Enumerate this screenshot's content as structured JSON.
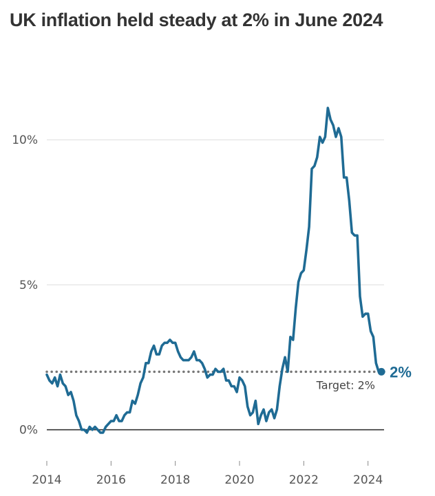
{
  "chart_data": {
    "type": "line",
    "title": "UK inflation held steady at 2% in June 2024",
    "xlabel": "",
    "ylabel": "",
    "x_ticks": [
      "2014",
      "2016",
      "2018",
      "2020",
      "2022",
      "2024"
    ],
    "y_ticks": [
      {
        "value": 0,
        "label": "0%"
      },
      {
        "value": 5,
        "label": "5%"
      },
      {
        "value": 10,
        "label": "10%"
      }
    ],
    "ylim": [
      -0.6,
      11.5
    ],
    "xlim": [
      2014.0,
      2024.5
    ],
    "grid": true,
    "series_color": "#1f6b94",
    "target": {
      "value": 2,
      "label": "Target: 2%"
    },
    "end_label": "2%",
    "series": [
      {
        "start_year": 2014,
        "start_month": 1,
        "values": [
          1.9,
          1.7,
          1.6,
          1.8,
          1.5,
          1.9,
          1.6,
          1.5,
          1.2,
          1.3,
          1.0,
          0.5,
          0.3,
          0.0,
          0.0,
          -0.1,
          0.1,
          0.0,
          0.1,
          0.0,
          -0.1,
          -0.1,
          0.1,
          0.2,
          0.3,
          0.3,
          0.5,
          0.3,
          0.3,
          0.5,
          0.6,
          0.6,
          1.0,
          0.9,
          1.2,
          1.6,
          1.8,
          2.3,
          2.3,
          2.7,
          2.9,
          2.6,
          2.6,
          2.9,
          3.0,
          3.0,
          3.1,
          3.0,
          3.0,
          2.7,
          2.5,
          2.4,
          2.4,
          2.4,
          2.5,
          2.7,
          2.4,
          2.4,
          2.3,
          2.1,
          1.8,
          1.9,
          1.9,
          2.1,
          2.0,
          2.0,
          2.1,
          1.7,
          1.7,
          1.5,
          1.5,
          1.3,
          1.8,
          1.7,
          1.5,
          0.8,
          0.5,
          0.6,
          1.0,
          0.2,
          0.5,
          0.7,
          0.3,
          0.6,
          0.7,
          0.4,
          0.7,
          1.5,
          2.1,
          2.5,
          2.0,
          3.2,
          3.1,
          4.2,
          5.1,
          5.4,
          5.5,
          6.2,
          7.0,
          9.0,
          9.1,
          9.4,
          10.1,
          9.9,
          10.1,
          11.1,
          10.7,
          10.5,
          10.1,
          10.4,
          10.1,
          8.7,
          8.7,
          7.9,
          6.8,
          6.7,
          6.7,
          4.6,
          3.9,
          4.0,
          4.0,
          3.4,
          3.2,
          2.3,
          2.0,
          2.0
        ]
      }
    ]
  }
}
